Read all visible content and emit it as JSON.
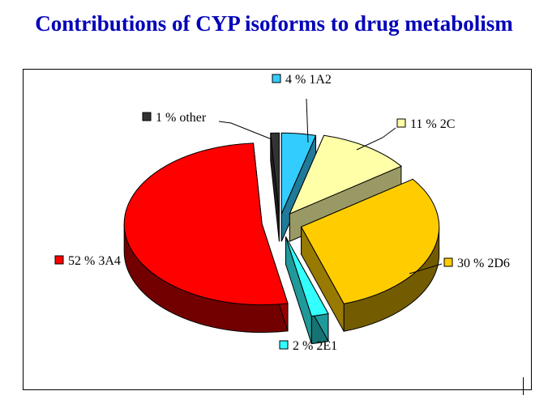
{
  "title": "Contributions of CYP isoforms to drug metabolism",
  "chart_data": {
    "type": "pie",
    "title": "Contributions of CYP isoforms to drug metabolism",
    "three_d": true,
    "exploded": true,
    "slices": [
      {
        "label": "4 % 1A2",
        "name": "1A2",
        "value": 4,
        "color": "#33ccff"
      },
      {
        "label": "11 % 2C",
        "name": "2C",
        "value": 11,
        "color": "#ffffa8"
      },
      {
        "label": "30 % 2D6",
        "name": "2D6",
        "value": 30,
        "color": "#ffcc00"
      },
      {
        "label": "2 % 2E1",
        "name": "2E1",
        "value": 2,
        "color": "#33ffff"
      },
      {
        "label": "52 % 3A4",
        "name": "3A4",
        "value": 52,
        "color": "#ff0000"
      },
      {
        "label": "1 % other",
        "name": "other",
        "value": 1,
        "color": "#333333"
      }
    ]
  }
}
